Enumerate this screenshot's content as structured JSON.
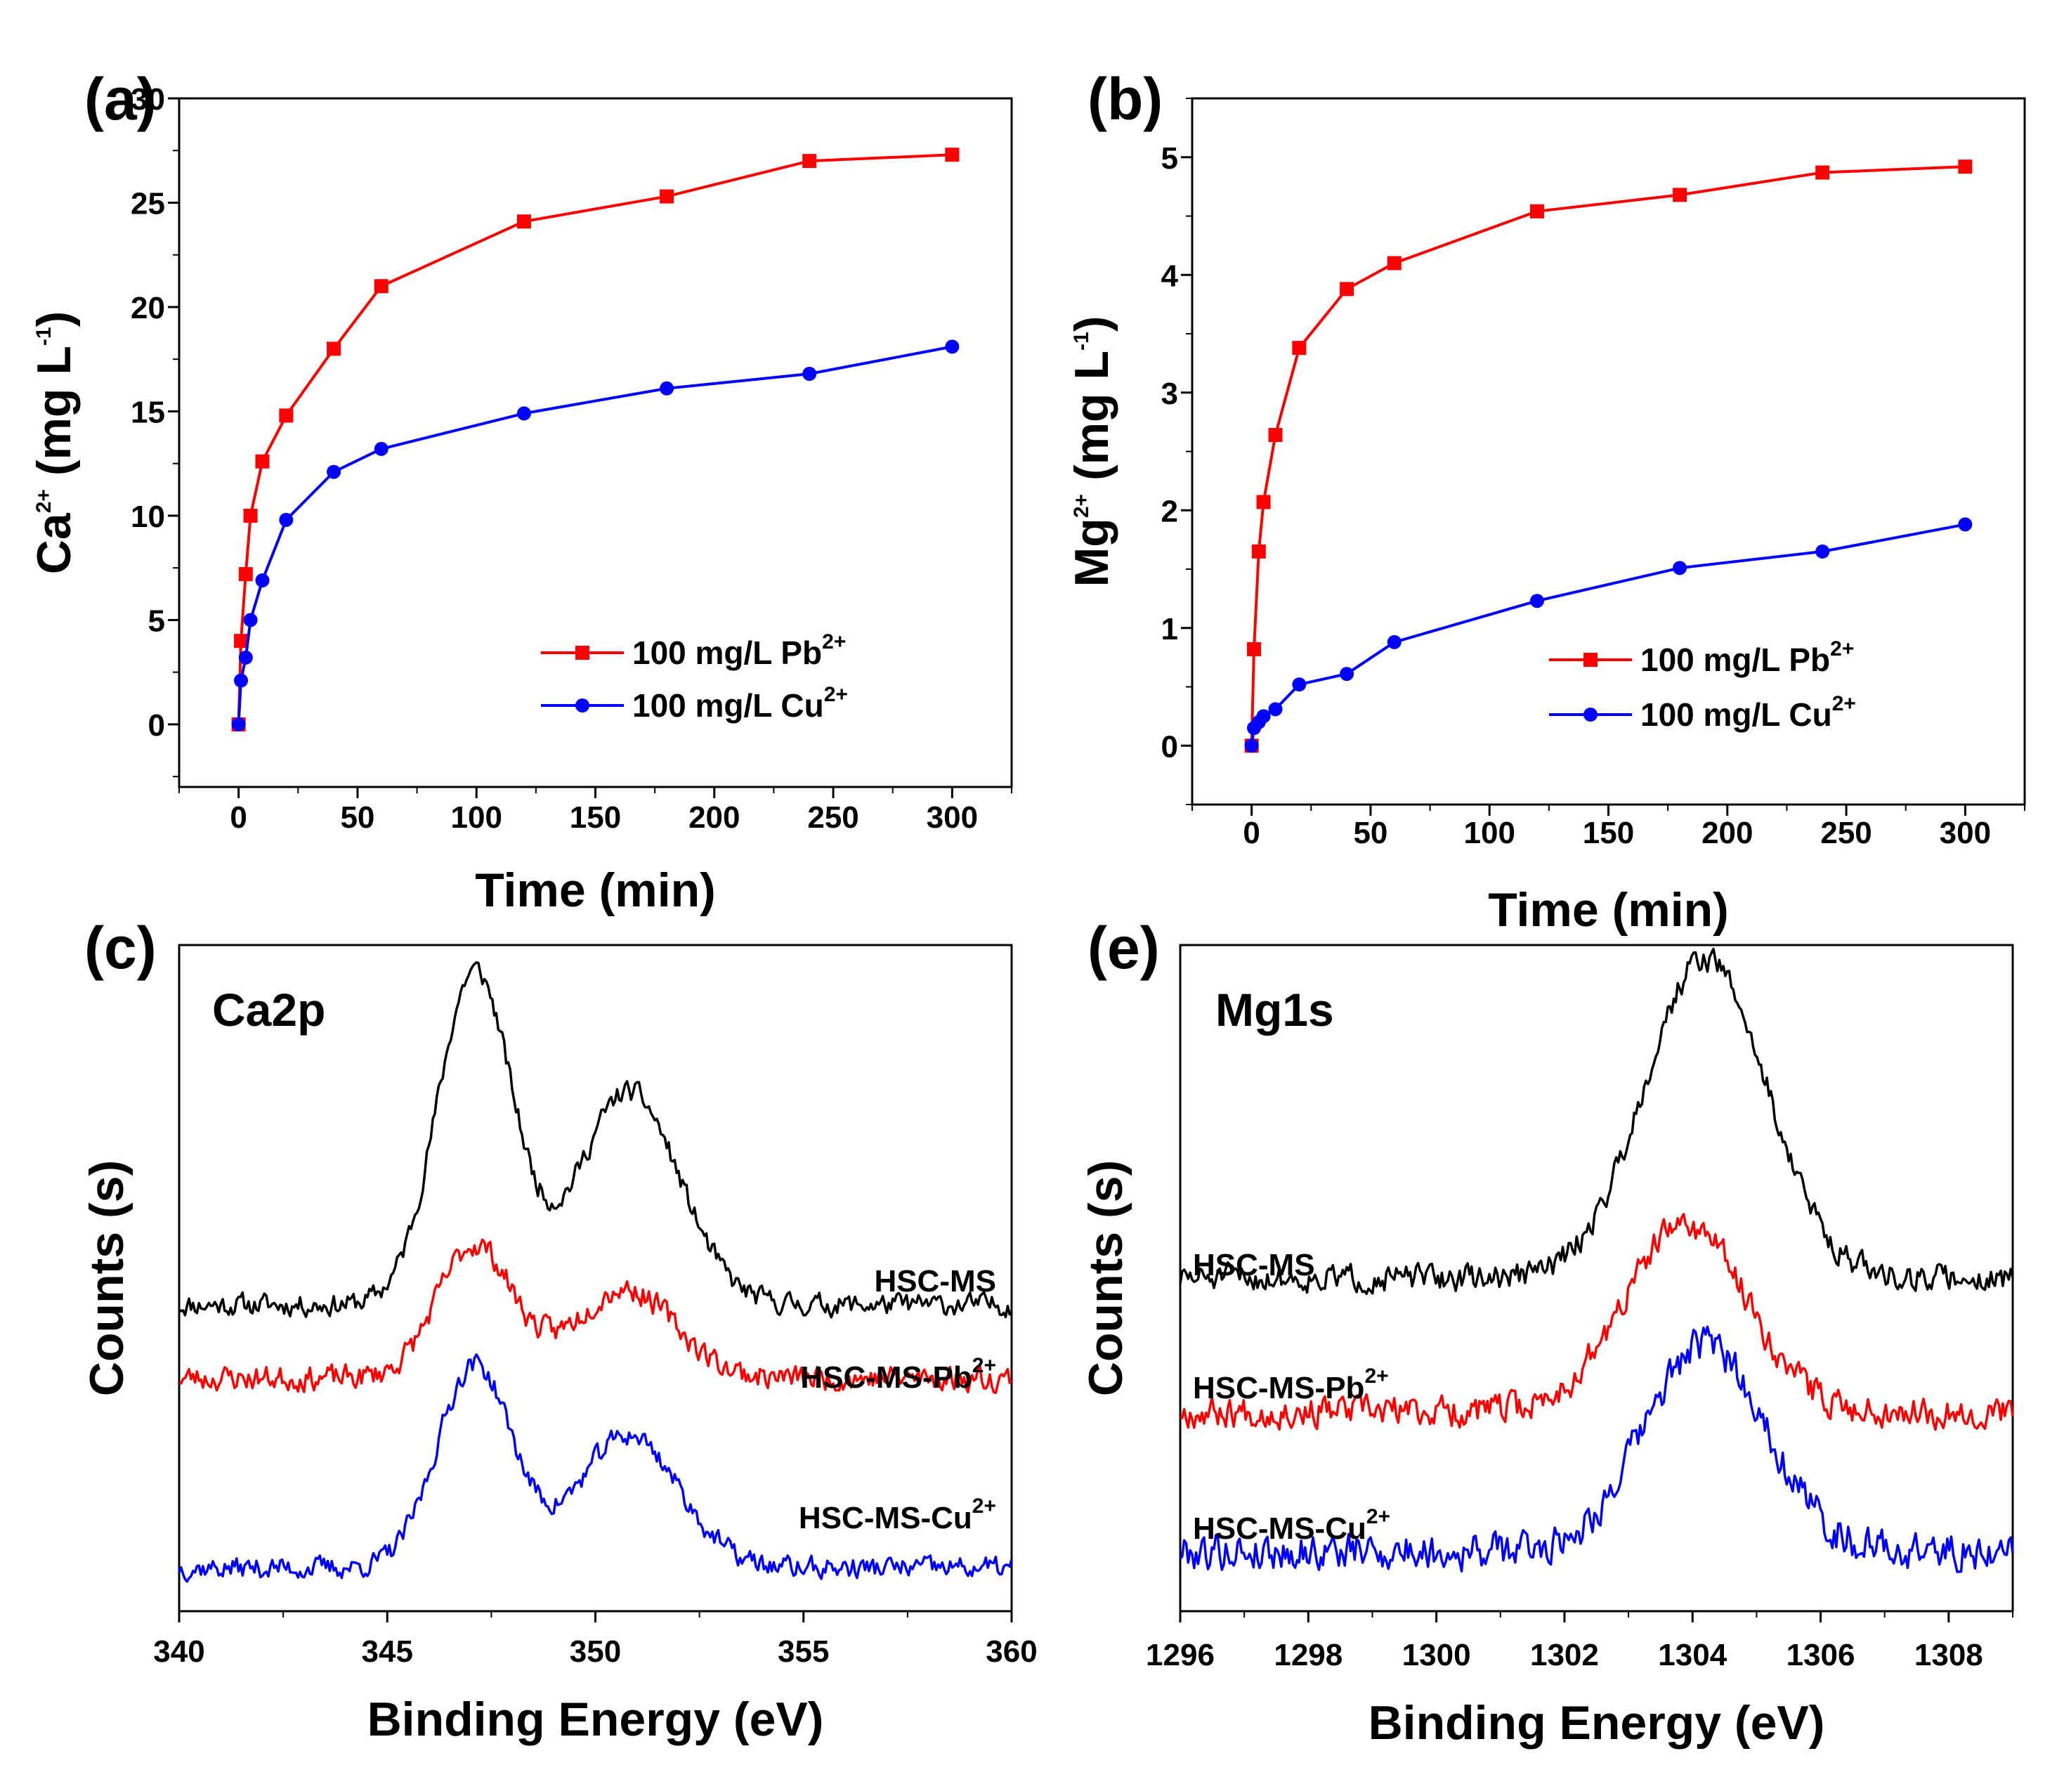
{
  "chart_data": [
    {
      "id": "a",
      "panel_label": "(a)",
      "type": "line",
      "xlabel": "Time (min)",
      "ylabel": "Ca",
      "ylabel_sup": "2+",
      "ylabel_unit_prefix": " (mg L",
      "ylabel_unit_sup": "-1",
      "ylabel_unit_suffix": ")",
      "xlim": [
        -25,
        325
      ],
      "ylim": [
        -3,
        30
      ],
      "xticks": [
        0,
        50,
        100,
        150,
        200,
        250,
        300
      ],
      "yticks": [
        0,
        5,
        10,
        15,
        20,
        25,
        30
      ],
      "legend_position": "bottom-right",
      "series": [
        {
          "name": "100 mg/L Pb2+",
          "label": "100 mg/L Pb",
          "label_sup": "2+",
          "color": "#ff0000",
          "marker": "square",
          "x": [
            0,
            1,
            3,
            5,
            10,
            20,
            40,
            60,
            120,
            180,
            240,
            300
          ],
          "y": [
            0,
            4.0,
            7.2,
            10.0,
            12.6,
            14.8,
            18.0,
            21.0,
            24.1,
            25.3,
            27.0,
            27.3
          ]
        },
        {
          "name": "100 mg/L Cu2+",
          "label": "100 mg/L Cu",
          "label_sup": "2+",
          "color": "#0000ff",
          "marker": "circle",
          "x": [
            0,
            1,
            3,
            5,
            10,
            20,
            40,
            60,
            120,
            180,
            240,
            300
          ],
          "y": [
            0,
            2.1,
            3.2,
            5.0,
            6.9,
            9.8,
            12.1,
            13.2,
            14.9,
            16.1,
            16.8,
            18.1
          ]
        }
      ]
    },
    {
      "id": "b",
      "panel_label": "(b)",
      "type": "line",
      "xlabel": "Time (min)",
      "ylabel": "Mg",
      "ylabel_sup": "2+",
      "ylabel_unit_prefix": " (mg L",
      "ylabel_unit_sup": "-1",
      "ylabel_unit_suffix": ")",
      "xlim": [
        -25,
        325
      ],
      "ylim": [
        -0.5,
        5.5
      ],
      "xticks": [
        0,
        50,
        100,
        150,
        200,
        250,
        300
      ],
      "yticks": [
        0,
        1,
        2,
        3,
        4,
        5
      ],
      "legend_position": "bottom-right",
      "series": [
        {
          "name": "100 mg/L Pb2+",
          "label": "100 mg/L Pb",
          "label_sup": "2+",
          "color": "#ff0000",
          "marker": "square",
          "x": [
            0,
            1,
            3,
            5,
            10,
            20,
            40,
            60,
            120,
            180,
            240,
            300
          ],
          "y": [
            0,
            0.82,
            1.65,
            2.07,
            2.64,
            3.38,
            3.88,
            4.1,
            4.54,
            4.68,
            4.87,
            4.92
          ]
        },
        {
          "name": "100 mg/L Cu2+",
          "label": "100 mg/L Cu",
          "label_sup": "2+",
          "color": "#0000ff",
          "marker": "circle",
          "x": [
            0,
            1,
            3,
            5,
            10,
            20,
            40,
            60,
            120,
            180,
            240,
            300
          ],
          "y": [
            0,
            0.15,
            0.2,
            0.25,
            0.31,
            0.52,
            0.61,
            0.88,
            1.23,
            1.51,
            1.65,
            1.88
          ]
        }
      ]
    },
    {
      "id": "c",
      "panel_label": "(c)",
      "type": "line",
      "title": "Ca2p",
      "xlabel": "Binding Energy (eV)",
      "ylabel": "Counts (s)",
      "xlim": [
        340,
        360
      ],
      "ylim": [
        0,
        10
      ],
      "xticks": [
        340,
        345,
        350,
        355,
        360
      ],
      "yticks": [],
      "series": [
        {
          "name": "HSC-MS",
          "label": "HSC-MS",
          "label_sup": "",
          "color": "#000000",
          "baseline": 4.6,
          "peaks": [
            {
              "center": 347.1,
              "height": 5.0,
              "width": 0.9
            },
            {
              "center": 350.8,
              "height": 3.2,
              "width": 1.2
            }
          ],
          "noise": 0.14,
          "seed": 11
        },
        {
          "name": "HSC-MS-Pb2+",
          "label": "HSC-MS-Pb",
          "label_sup": "2+",
          "color": "#ff0000",
          "baseline": 3.5,
          "peaks": [
            {
              "center": 347.1,
              "height": 2.0,
              "width": 0.9
            },
            {
              "center": 350.7,
              "height": 1.35,
              "width": 1.2
            }
          ],
          "noise": 0.16,
          "seed": 23
        },
        {
          "name": "HSC-MS-Cu2+",
          "label": "HSC-MS-Cu",
          "label_sup": "2+",
          "color": "#0000ff",
          "baseline": 0.65,
          "peaks": [
            {
              "center": 347.1,
              "height": 3.05,
              "width": 0.9
            },
            {
              "center": 350.8,
              "height": 2.0,
              "width": 1.2
            }
          ],
          "noise": 0.14,
          "seed": 37
        }
      ]
    },
    {
      "id": "e",
      "panel_label": "(e)",
      "type": "line",
      "title": "Mg1s",
      "xlabel": "Binding Energy (eV)",
      "ylabel": "Counts (s)",
      "xlim": [
        1296,
        1309
      ],
      "ylim": [
        0,
        10
      ],
      "xticks": [
        1296,
        1298,
        1300,
        1302,
        1304,
        1306,
        1308
      ],
      "yticks": [],
      "series": [
        {
          "name": "HSC-MS",
          "label": "HSC-MS",
          "label_sup": "",
          "color": "#000000",
          "baseline": 5.0,
          "peaks": [
            {
              "center": 1304.2,
              "height": 4.8,
              "width": 0.95
            }
          ],
          "noise": 0.17,
          "seed": 51
        },
        {
          "name": "HSC-MS-Pb2+",
          "label": "HSC-MS-Pb",
          "label_sup": "2+",
          "color": "#ff0000",
          "baseline": 3.0,
          "peaks": [
            {
              "center": 1303.9,
              "height": 2.8,
              "width": 0.95
            }
          ],
          "noise": 0.2,
          "seed": 67
        },
        {
          "name": "HSC-MS-Cu2+",
          "label": "HSC-MS-Cu",
          "label_sup": "2+",
          "color": "#0000ff",
          "baseline": 0.9,
          "peaks": [
            {
              "center": 1304.2,
              "height": 3.1,
              "width": 0.95
            }
          ],
          "noise": 0.24,
          "seed": 79
        }
      ]
    }
  ]
}
